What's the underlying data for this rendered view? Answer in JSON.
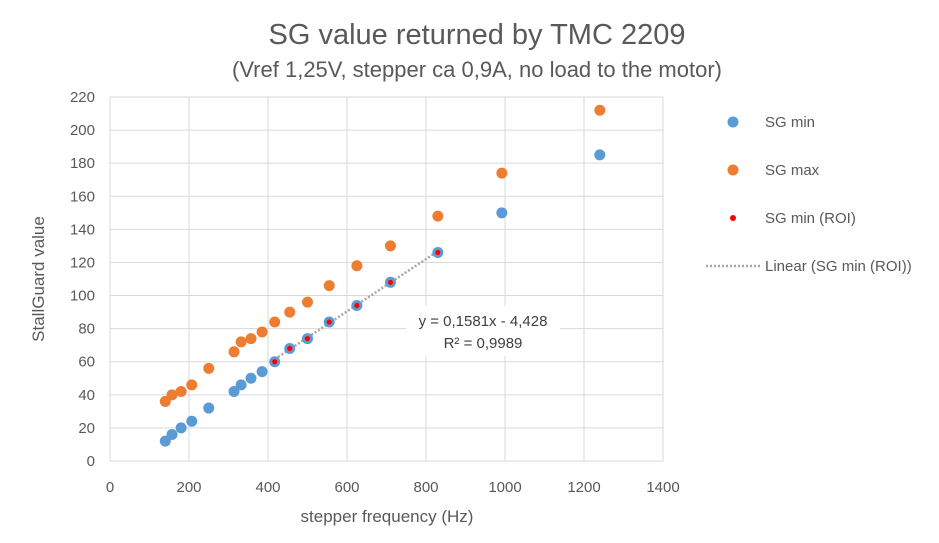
{
  "chart_data": {
    "type": "scatter",
    "title": "SG value returned by TMC 2209",
    "subtitle": "(Vref 1,25V, stepper ca 0,9A, no load to the motor)",
    "xlabel": "stepper frequency (Hz)",
    "ylabel": "StallGuard value",
    "xlim": [
      0,
      1400
    ],
    "ylim": [
      0,
      220
    ],
    "x_ticks": [
      "0",
      "200",
      "400",
      "600",
      "800",
      "1000",
      "1200",
      "1400"
    ],
    "y_ticks": [
      "0",
      "20",
      "40",
      "60",
      "80",
      "100",
      "120",
      "140",
      "160",
      "180",
      "200",
      "220"
    ],
    "grid": true,
    "legend_position": "right",
    "series": [
      {
        "name": "SG min",
        "color": "#5b9bd5",
        "marker": "circle",
        "points": [
          [
            140,
            12
          ],
          [
            157,
            16
          ],
          [
            180,
            20
          ],
          [
            207,
            24
          ],
          [
            250,
            32
          ],
          [
            314,
            42
          ],
          [
            332,
            46
          ],
          [
            357,
            50
          ],
          [
            385,
            54
          ],
          [
            417,
            60
          ],
          [
            455,
            68
          ],
          [
            500,
            74
          ],
          [
            555,
            84
          ],
          [
            625,
            94
          ],
          [
            710,
            108
          ],
          [
            830,
            126
          ],
          [
            992,
            150
          ],
          [
            1240,
            185
          ]
        ]
      },
      {
        "name": "SG max",
        "color": "#ed7d31",
        "marker": "circle",
        "points": [
          [
            140,
            36
          ],
          [
            157,
            40
          ],
          [
            180,
            42
          ],
          [
            207,
            46
          ],
          [
            250,
            56
          ],
          [
            314,
            66
          ],
          [
            332,
            72
          ],
          [
            357,
            74
          ],
          [
            385,
            78
          ],
          [
            417,
            84
          ],
          [
            455,
            90
          ],
          [
            500,
            96
          ],
          [
            555,
            106
          ],
          [
            625,
            118
          ],
          [
            710,
            130
          ],
          [
            830,
            148
          ],
          [
            992,
            174
          ],
          [
            1240,
            212
          ]
        ]
      },
      {
        "name": "SG min (ROI)",
        "color": "#ff0000",
        "marker": "small-dot",
        "points": [
          [
            417,
            60
          ],
          [
            455,
            68
          ],
          [
            500,
            74
          ],
          [
            555,
            84
          ],
          [
            625,
            94
          ],
          [
            710,
            108
          ],
          [
            830,
            126
          ]
        ]
      }
    ],
    "trendline": {
      "name": "Linear (SG min (ROI))",
      "of_series": "SG min (ROI)",
      "slope": 0.1581,
      "intercept": -4.428,
      "x_range": [
        417,
        830
      ],
      "color": "#a6a6a6",
      "style": "dotted",
      "equation": "y = 0,1581x - 4,428",
      "r2": "R² = 0,9989"
    }
  }
}
